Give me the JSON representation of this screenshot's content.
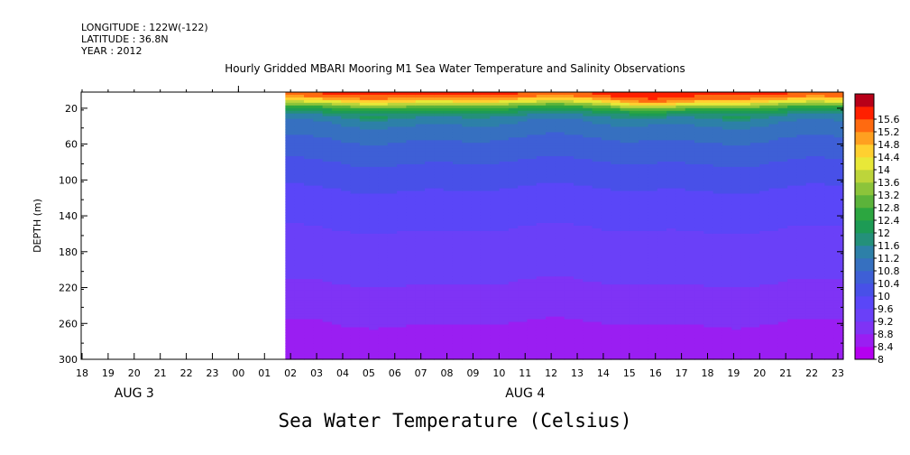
{
  "header": {
    "longitude": "LONGITUDE : 122W(-122)",
    "latitude": "LATITUDE : 36.8N",
    "year": "YEAR : 2012"
  },
  "chart_data": {
    "type": "heatmap",
    "title": "Hourly Gridded MBARI Mooring M1 Sea Water Temperature and Salinity Observations",
    "subtitle": "Sea Water Temperature (Celsius)",
    "ylabel": "DEPTH (m)",
    "y_inverted": true,
    "ylim": [
      300,
      2
    ],
    "y_ticks": [
      20,
      60,
      100,
      140,
      180,
      220,
      260,
      300
    ],
    "x_ticks": [
      "18",
      "19",
      "20",
      "21",
      "22",
      "23",
      "00",
      "01",
      "02",
      "03",
      "04",
      "05",
      "06",
      "07",
      "08",
      "09",
      "10",
      "11",
      "12",
      "13",
      "14",
      "15",
      "16",
      "17",
      "18",
      "19",
      "20",
      "21",
      "22",
      "23"
    ],
    "date_labels": [
      {
        "label": "AUG 3",
        "tick_index": 2
      },
      {
        "label": "AUG 4",
        "tick_index": 17
      }
    ],
    "data_start_tick_index": 7.8,
    "colorbar": {
      "levels": [
        "8",
        "8.4",
        "8.8",
        "9.2",
        "9.6",
        "10",
        "10.4",
        "10.8",
        "11.2",
        "11.6",
        "12",
        "12.4",
        "12.8",
        "13.2",
        "13.6",
        "14",
        "14.4",
        "14.8",
        "15.2",
        "15.6"
      ],
      "colors": [
        "#b400f0",
        "#9a1ef2",
        "#7f33f5",
        "#6a40f8",
        "#5a46f8",
        "#4850e8",
        "#3e5fd6",
        "#3670c0",
        "#2d80a8",
        "#24907a",
        "#1d9b55",
        "#2ca640",
        "#5bb33a",
        "#8cc43a",
        "#bdd53a",
        "#e8e838",
        "#ffd030",
        "#ffa020",
        "#ff6a10",
        "#ff2000",
        "#b80018"
      ]
    },
    "profile": [
      {
        "depth": 2,
        "temp": 15.4
      },
      {
        "depth": 8,
        "temp": 14.8
      },
      {
        "depth": 14,
        "temp": 13.6
      },
      {
        "depth": 20,
        "temp": 12.2
      },
      {
        "depth": 30,
        "temp": 11.0
      },
      {
        "depth": 45,
        "temp": 10.6
      },
      {
        "depth": 60,
        "temp": 10.3
      },
      {
        "depth": 80,
        "temp": 10.0
      },
      {
        "depth": 100,
        "temp": 9.7
      },
      {
        "depth": 120,
        "temp": 9.5
      },
      {
        "depth": 140,
        "temp": 9.3
      },
      {
        "depth": 170,
        "temp": 9.1
      },
      {
        "depth": 200,
        "temp": 8.9
      },
      {
        "depth": 230,
        "temp": 8.7
      },
      {
        "depth": 260,
        "temp": 8.4
      },
      {
        "depth": 300,
        "temp": 8.1
      }
    ],
    "surface_warm_bulge": {
      "center_tick_index": 22,
      "width_ticks": 3,
      "depth_offset": 7
    }
  }
}
